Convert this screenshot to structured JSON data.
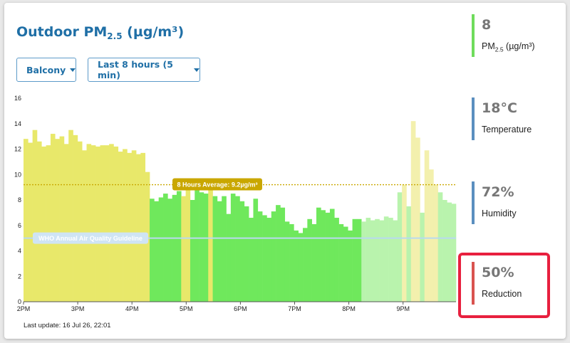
{
  "header": {
    "title_main": "Outdoor PM",
    "title_sub": "2.5",
    "title_unit": " (µg/m³)"
  },
  "controls": {
    "location": "Balcony",
    "range": "Last 8 hours (5 min)"
  },
  "footer": {
    "last_update": "Last update: 16 Jul 26, 22:01"
  },
  "stats": {
    "pm": {
      "value": "8",
      "label_main": "PM",
      "label_sub": "2.5",
      "label_unit": " (µg/m³)",
      "color": "#6fdc5c"
    },
    "temperature": {
      "value": "18°C",
      "label": "Temperature",
      "color": "#5b8fbf"
    },
    "humidity": {
      "value": "72%",
      "label": "Humidity",
      "color": "#5b8fbf"
    },
    "reduction": {
      "value": "50%",
      "label": "Reduction",
      "color": "#d9534f"
    }
  },
  "chart_data": {
    "type": "bar",
    "ylim": [
      0,
      16
    ],
    "yticks": [
      "0",
      "2",
      "4",
      "6",
      "8",
      "10",
      "12",
      "14",
      "16"
    ],
    "xticks": [
      "2PM",
      "3PM",
      "4PM",
      "5PM",
      "6PM",
      "7PM",
      "8PM",
      "9PM"
    ],
    "grid": false,
    "average": {
      "value": 9.2,
      "label": "8 Hours Average: 9.2µg/m³",
      "color": "#c9a700"
    },
    "guideline": {
      "value": 5,
      "label": "WHO Annual Air Quality Guideline",
      "color": "#b9d9ef"
    },
    "colors": {
      "yellow": "#e8e86a",
      "green": "#6fe85c",
      "pale_yellow": "#f3f0ad",
      "pale_green": "#b9f3ad"
    },
    "bars": [
      {
        "v": 12.8,
        "c": "yellow"
      },
      {
        "v": 12.5,
        "c": "yellow"
      },
      {
        "v": 13.5,
        "c": "yellow"
      },
      {
        "v": 12.6,
        "c": "yellow"
      },
      {
        "v": 12.2,
        "c": "yellow"
      },
      {
        "v": 12.3,
        "c": "yellow"
      },
      {
        "v": 13.2,
        "c": "yellow"
      },
      {
        "v": 12.8,
        "c": "yellow"
      },
      {
        "v": 13.0,
        "c": "yellow"
      },
      {
        "v": 12.4,
        "c": "yellow"
      },
      {
        "v": 13.5,
        "c": "yellow"
      },
      {
        "v": 13.1,
        "c": "yellow"
      },
      {
        "v": 12.6,
        "c": "yellow"
      },
      {
        "v": 11.9,
        "c": "yellow"
      },
      {
        "v": 12.4,
        "c": "yellow"
      },
      {
        "v": 12.3,
        "c": "yellow"
      },
      {
        "v": 12.2,
        "c": "yellow"
      },
      {
        "v": 12.3,
        "c": "yellow"
      },
      {
        "v": 12.3,
        "c": "yellow"
      },
      {
        "v": 12.4,
        "c": "yellow"
      },
      {
        "v": 12.2,
        "c": "yellow"
      },
      {
        "v": 11.8,
        "c": "yellow"
      },
      {
        "v": 12.0,
        "c": "yellow"
      },
      {
        "v": 11.7,
        "c": "yellow"
      },
      {
        "v": 11.9,
        "c": "yellow"
      },
      {
        "v": 11.6,
        "c": "yellow"
      },
      {
        "v": 11.7,
        "c": "yellow"
      },
      {
        "v": 10.2,
        "c": "yellow"
      },
      {
        "v": 8.1,
        "c": "green"
      },
      {
        "v": 7.9,
        "c": "green"
      },
      {
        "v": 8.2,
        "c": "green"
      },
      {
        "v": 8.5,
        "c": "green"
      },
      {
        "v": 8.1,
        "c": "green"
      },
      {
        "v": 8.4,
        "c": "green"
      },
      {
        "v": 8.7,
        "c": "green"
      },
      {
        "v": 8.3,
        "c": "yellow"
      },
      {
        "v": 9.1,
        "c": "yellow"
      },
      {
        "v": 8.0,
        "c": "green"
      },
      {
        "v": 8.8,
        "c": "green"
      },
      {
        "v": 8.6,
        "c": "green"
      },
      {
        "v": 8.5,
        "c": "green"
      },
      {
        "v": 9.1,
        "c": "yellow"
      },
      {
        "v": 8.3,
        "c": "green"
      },
      {
        "v": 7.9,
        "c": "green"
      },
      {
        "v": 8.3,
        "c": "green"
      },
      {
        "v": 6.9,
        "c": "green"
      },
      {
        "v": 8.5,
        "c": "green"
      },
      {
        "v": 8.3,
        "c": "green"
      },
      {
        "v": 7.9,
        "c": "green"
      },
      {
        "v": 7.5,
        "c": "green"
      },
      {
        "v": 6.6,
        "c": "green"
      },
      {
        "v": 8.1,
        "c": "green"
      },
      {
        "v": 7.1,
        "c": "green"
      },
      {
        "v": 6.8,
        "c": "green"
      },
      {
        "v": 6.6,
        "c": "green"
      },
      {
        "v": 7.1,
        "c": "green"
      },
      {
        "v": 7.6,
        "c": "green"
      },
      {
        "v": 7.4,
        "c": "green"
      },
      {
        "v": 6.3,
        "c": "green"
      },
      {
        "v": 6.1,
        "c": "green"
      },
      {
        "v": 5.6,
        "c": "green"
      },
      {
        "v": 5.4,
        "c": "green"
      },
      {
        "v": 5.8,
        "c": "green"
      },
      {
        "v": 6.5,
        "c": "green"
      },
      {
        "v": 6.1,
        "c": "green"
      },
      {
        "v": 7.4,
        "c": "green"
      },
      {
        "v": 7.2,
        "c": "green"
      },
      {
        "v": 7.0,
        "c": "green"
      },
      {
        "v": 7.3,
        "c": "green"
      },
      {
        "v": 6.6,
        "c": "green"
      },
      {
        "v": 6.1,
        "c": "green"
      },
      {
        "v": 5.9,
        "c": "green"
      },
      {
        "v": 5.6,
        "c": "green"
      },
      {
        "v": 6.5,
        "c": "green"
      },
      {
        "v": 6.5,
        "c": "green"
      },
      {
        "v": 6.3,
        "c": "pale_green"
      },
      {
        "v": 6.6,
        "c": "pale_green"
      },
      {
        "v": 6.4,
        "c": "pale_green"
      },
      {
        "v": 6.5,
        "c": "pale_green"
      },
      {
        "v": 6.4,
        "c": "pale_green"
      },
      {
        "v": 6.7,
        "c": "pale_green"
      },
      {
        "v": 6.6,
        "c": "pale_green"
      },
      {
        "v": 6.4,
        "c": "pale_green"
      },
      {
        "v": 8.6,
        "c": "pale_green"
      },
      {
        "v": 9.2,
        "c": "pale_yellow"
      },
      {
        "v": 7.5,
        "c": "pale_green"
      },
      {
        "v": 14.2,
        "c": "pale_yellow"
      },
      {
        "v": 12.9,
        "c": "pale_yellow"
      },
      {
        "v": 7.0,
        "c": "pale_green"
      },
      {
        "v": 11.9,
        "c": "pale_yellow"
      },
      {
        "v": 10.4,
        "c": "pale_yellow"
      },
      {
        "v": 9.2,
        "c": "pale_yellow"
      },
      {
        "v": 8.6,
        "c": "pale_green"
      },
      {
        "v": 8.0,
        "c": "pale_green"
      },
      {
        "v": 7.8,
        "c": "pale_green"
      },
      {
        "v": 7.7,
        "c": "pale_green"
      }
    ]
  }
}
